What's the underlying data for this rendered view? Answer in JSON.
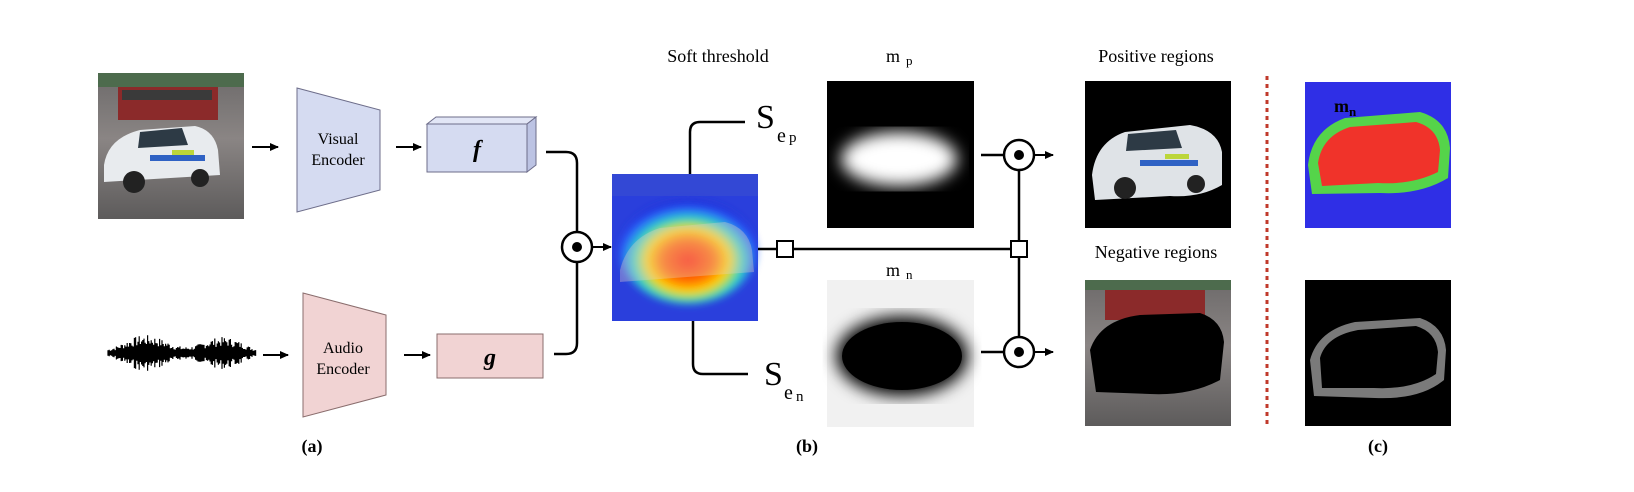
{
  "labels": {
    "visual_encoder_line1": "Visual",
    "visual_encoder_line2": "Encoder",
    "audio_encoder_line1": "Audio",
    "audio_encoder_line2": "Encoder",
    "feature_f": "f",
    "feature_g": "g",
    "soft_threshold": "Soft threshold",
    "s_ep_main": "S",
    "s_ep_sub": "e",
    "s_ep_subsub": "p",
    "s_en_main": "S",
    "s_en_sub": "e",
    "s_en_subsub": "n",
    "mp_main": "m",
    "mp_sub": "p",
    "mn_main": "m",
    "mn_sub": "n",
    "positive_regions": "Positive regions",
    "negative_regions": "Negative regions",
    "overlay_mn_main": "m",
    "overlay_mn_sub": "n",
    "panel_a": "(a)",
    "panel_b": "(b)",
    "panel_c": "(c)"
  },
  "colors": {
    "visual_encoder": "#d5dbf1",
    "audio_encoder": "#f1d3d3",
    "divider": "#c0392b",
    "heatmap_hot": "#ff2a00",
    "heatmap_cold": "#1f3cff",
    "overlay_red": "#f0332a",
    "overlay_green": "#55d44a",
    "overlay_blue": "#2f2fe6"
  },
  "icons": [
    "elementwise-product-icon",
    "arrow-icon",
    "split-node-icon",
    "audio-waveform-icon"
  ]
}
